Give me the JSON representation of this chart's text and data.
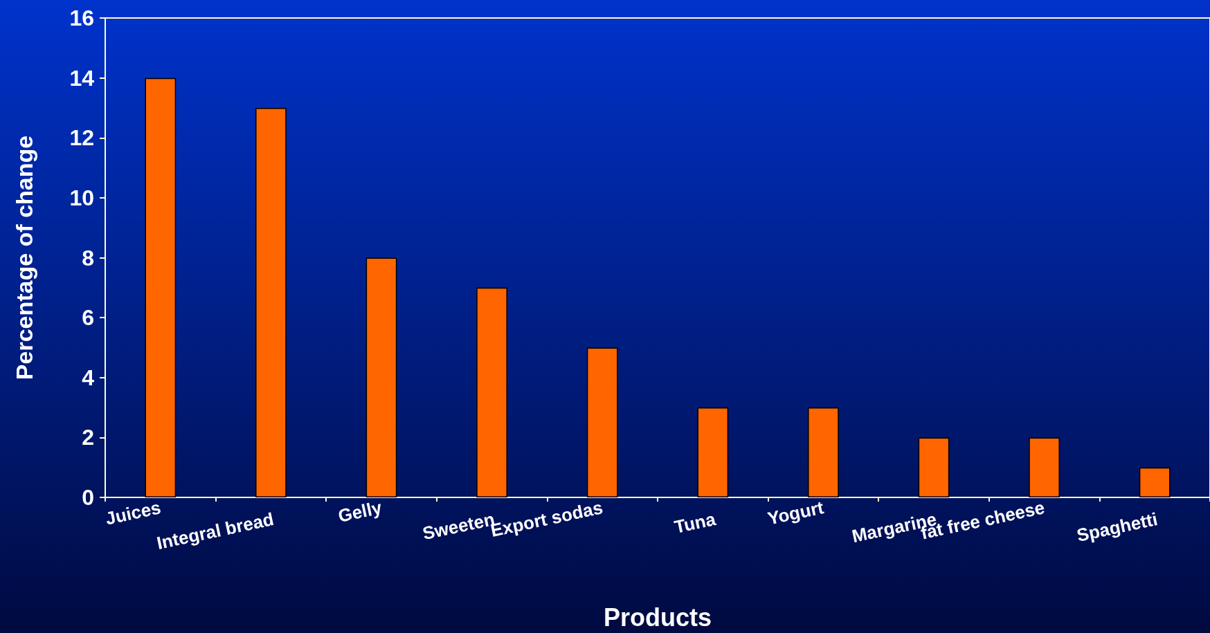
{
  "chart_data": {
    "type": "bar",
    "xlabel": "Products",
    "ylabel": "Percentage of change",
    "categories": [
      "Juices",
      "Integral bread",
      "Gelly",
      "Sweeten",
      "Export sodas",
      "Tuna",
      "Yogurt",
      "Margarine",
      "fat free cheese",
      "Spaghetti"
    ],
    "values": [
      14,
      13,
      8,
      7,
      5,
      3,
      3,
      2,
      2,
      1
    ],
    "color": "#ff6600",
    "ylim": [
      0,
      16
    ],
    "yticks": [
      0,
      2,
      4,
      6,
      8,
      10,
      12,
      14,
      16
    ],
    "grid": false
  }
}
